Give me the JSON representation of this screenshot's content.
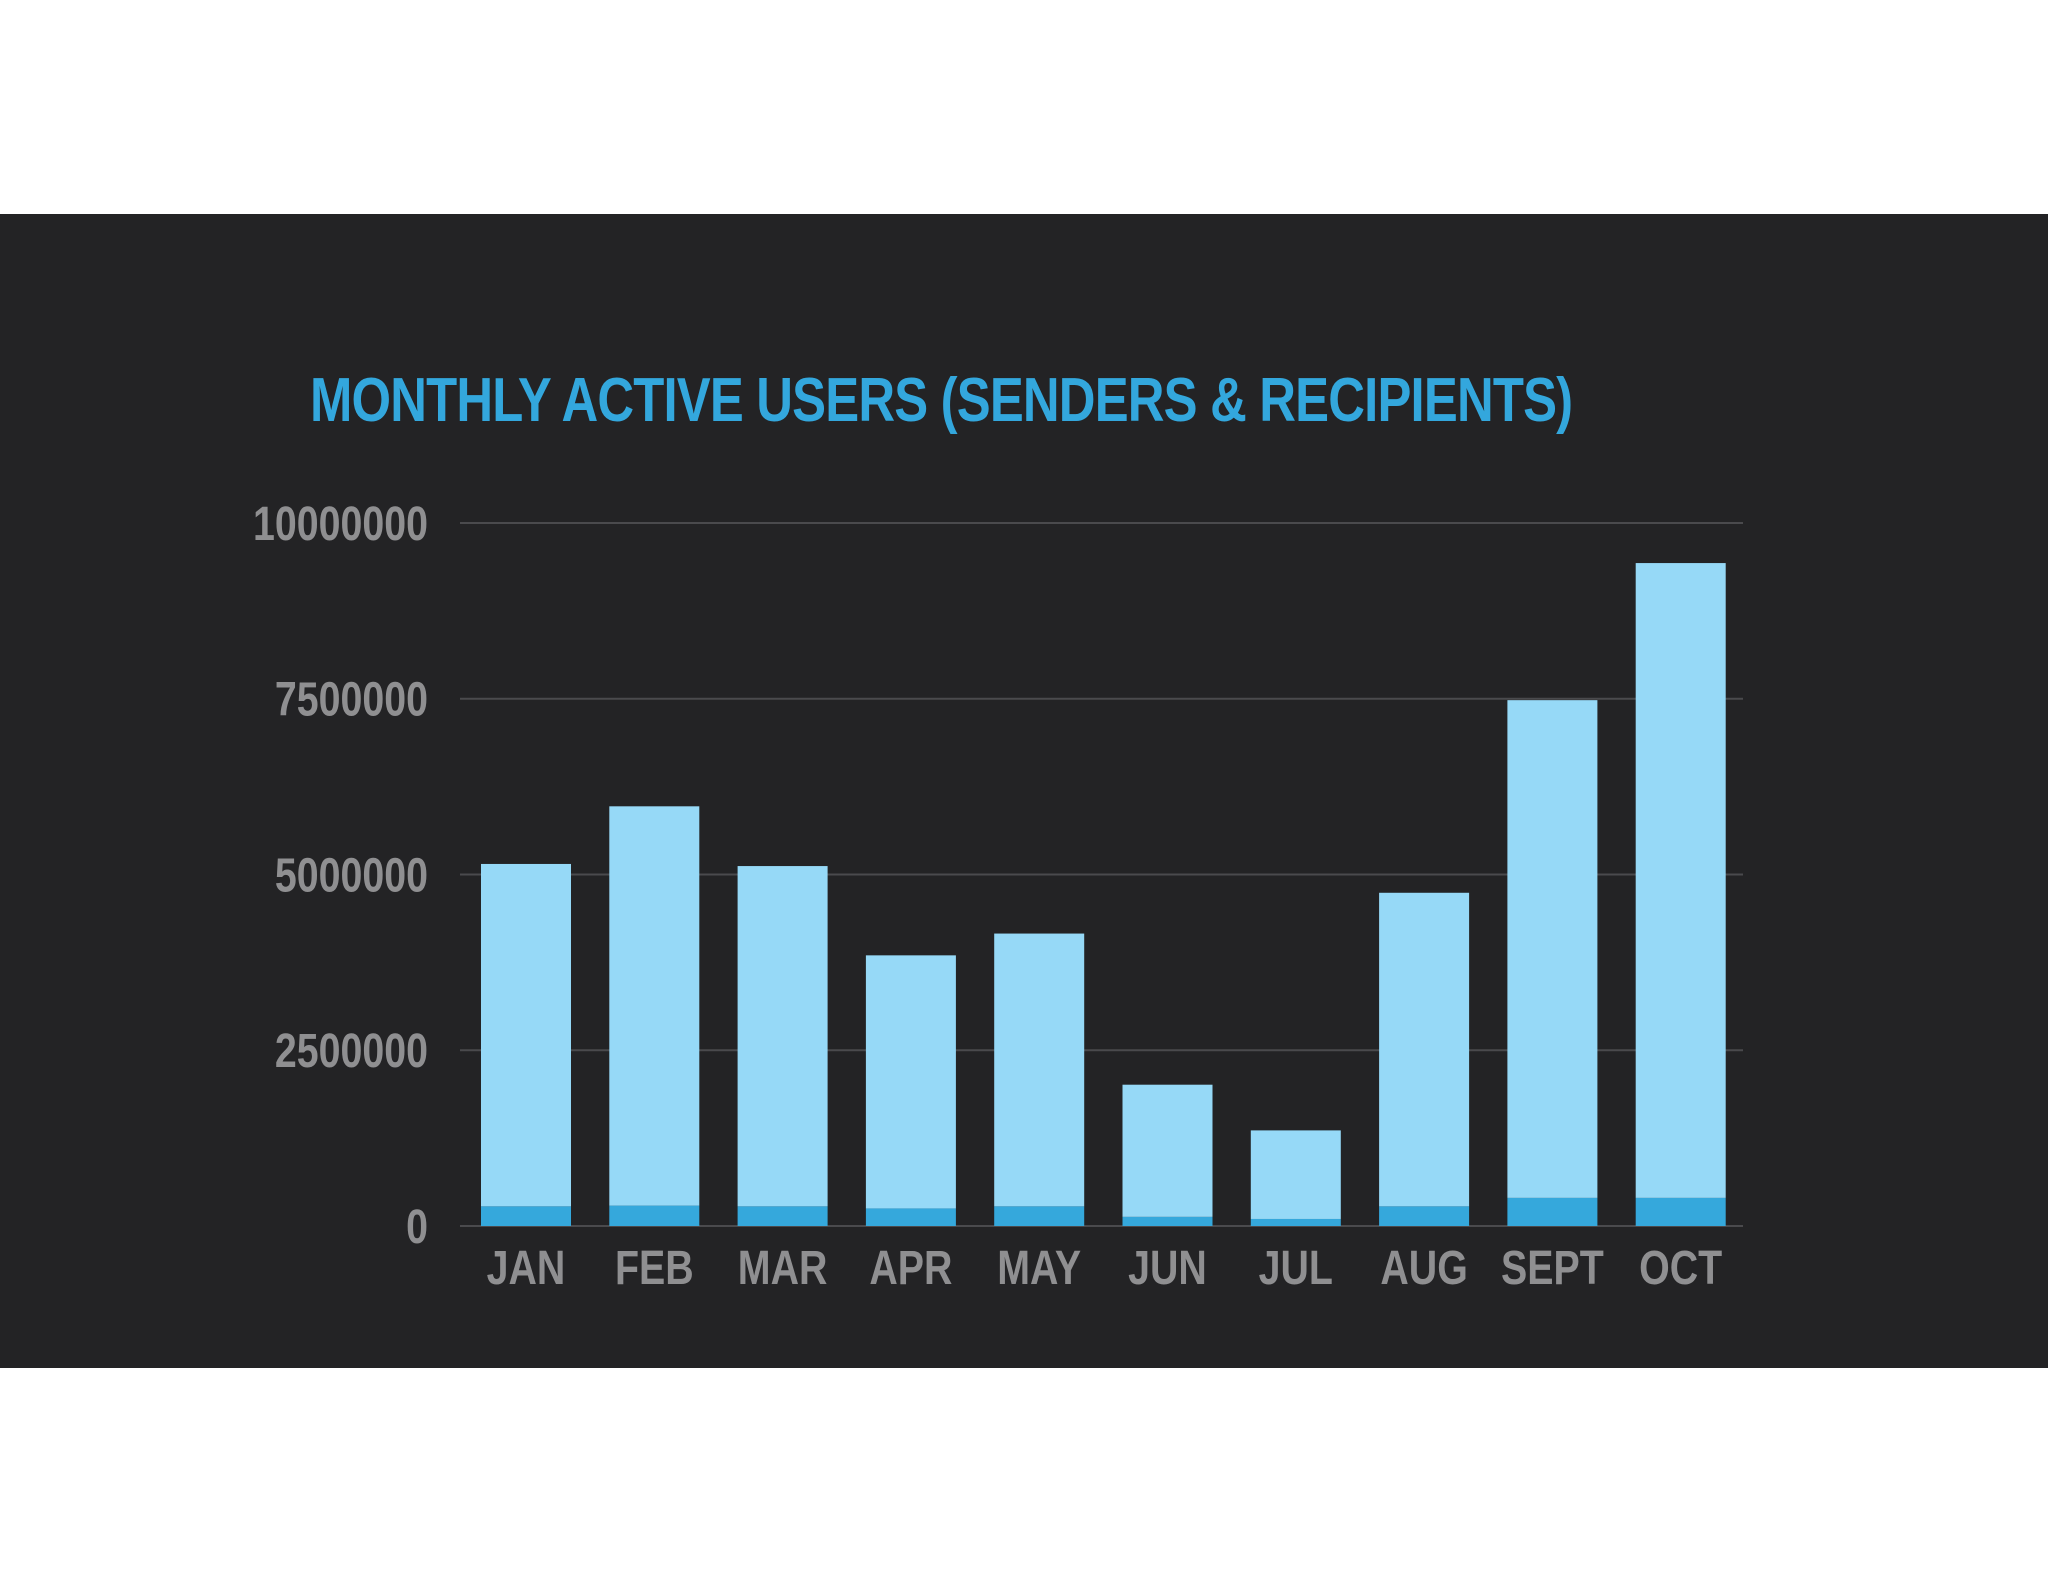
{
  "chart_data": {
    "type": "bar",
    "title": "MONTHLY ACTIVE USERS (SENDERS & RECIPIENTS)",
    "xlabel": "",
    "ylabel": "",
    "categories": [
      "JAN",
      "FEB",
      "MAR",
      "APR",
      "MAY",
      "JUN",
      "JUL",
      "AUG",
      "SEPT",
      "OCT"
    ],
    "series": [
      {
        "values": [
          280000,
          290000,
          280000,
          250000,
          280000,
          130000,
          100000,
          280000,
          400000,
          400000
        ],
        "color": "#35a8dc"
      },
      {
        "values": [
          4870000,
          5680000,
          4840000,
          3600000,
          3880000,
          1880000,
          1260000,
          4460000,
          7080000,
          9030000
        ],
        "color": "#96d9f7"
      }
    ],
    "stacked": true,
    "ylim": [
      0,
      10000000
    ],
    "yticks": [
      0,
      2500000,
      5000000,
      7500000,
      10000000
    ],
    "ytick_labels": [
      "0",
      "2500000",
      "5000000",
      "7500000",
      "10000000"
    ],
    "grid": true,
    "legend": "none",
    "colors": {
      "background": "#232325",
      "title": "#33a7dd",
      "tick_text": "#8f8f91",
      "gridline": "#4a4a4d"
    }
  }
}
